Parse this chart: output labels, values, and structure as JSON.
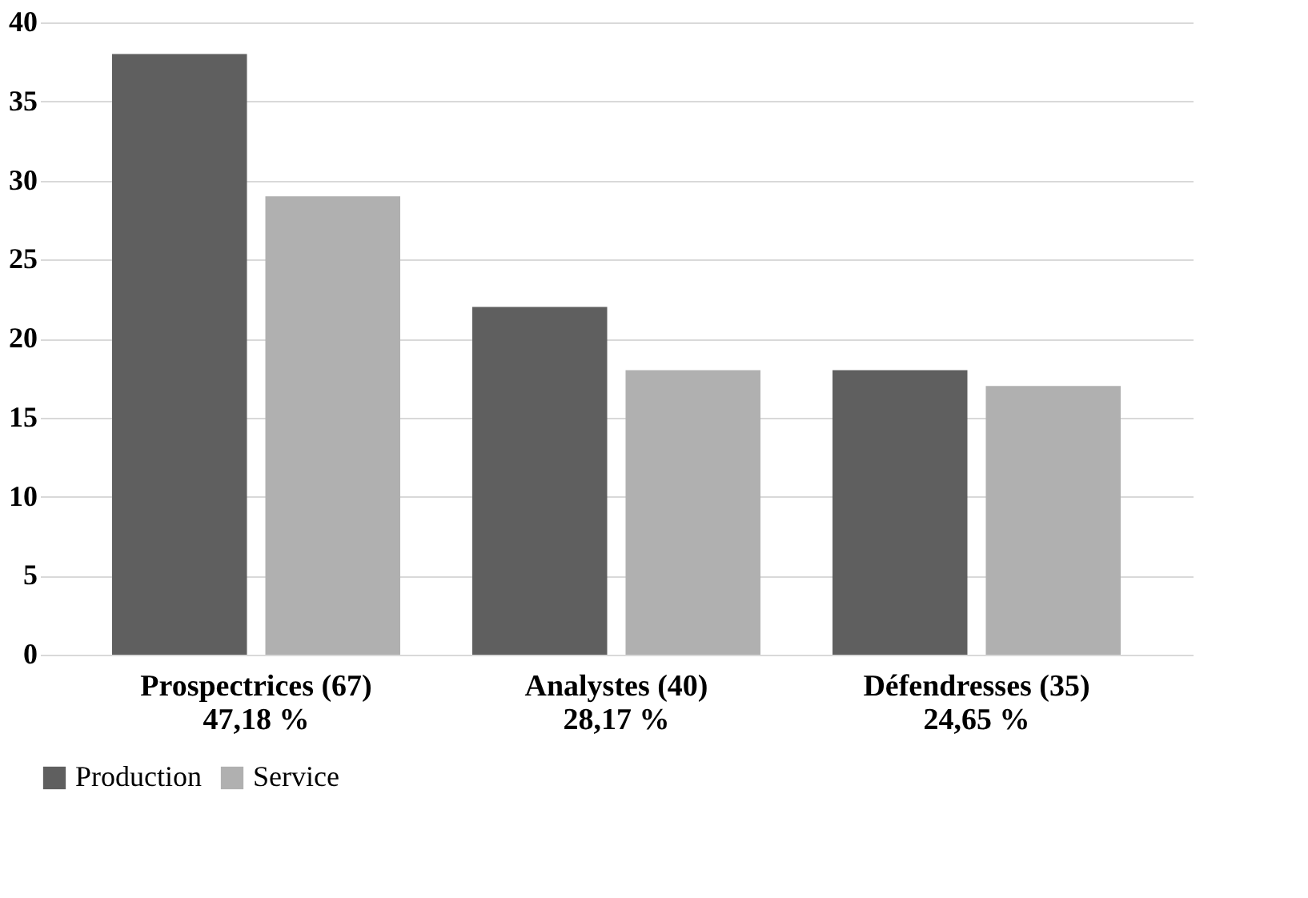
{
  "chart_data": {
    "type": "bar",
    "categories": [
      "Prospectrices (67)\n47,18 %",
      "Analystes (40)\n28,17 %",
      "Défendresses (35)\n24,65 %"
    ],
    "series": [
      {
        "name": "Production",
        "color": "#5f5f5f",
        "values": [
          38,
          22,
          18
        ]
      },
      {
        "name": "Service",
        "color": "#b0b0b0",
        "values": [
          29,
          18,
          17
        ]
      }
    ],
    "ylim": [
      0,
      40
    ],
    "yticks": [
      0,
      5,
      10,
      15,
      20,
      25,
      30,
      35,
      40
    ],
    "grid": "y",
    "legend": "bottom"
  }
}
